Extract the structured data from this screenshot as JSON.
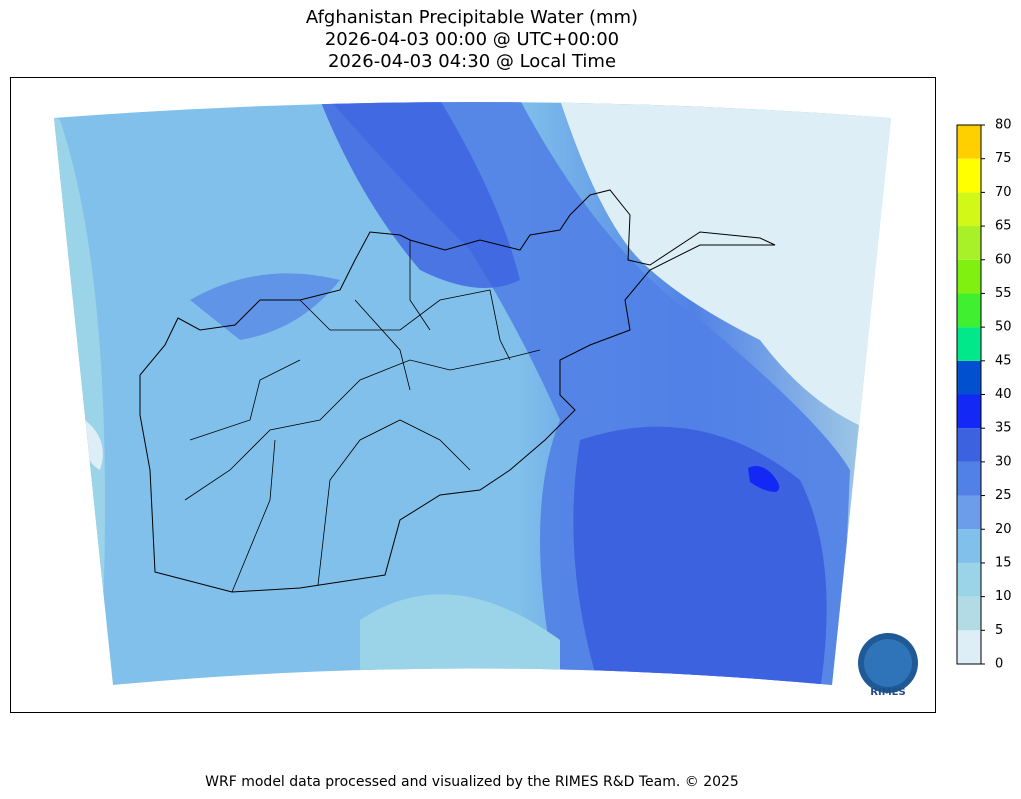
{
  "title": {
    "lines": [
      "Afghanistan Precipitable Water (mm)",
      "2026-04-03 00:00 @ UTC+00:00",
      "2026-04-03 04:30 @ Local Time"
    ]
  },
  "colorbar": {
    "ticks": [
      0,
      5,
      10,
      15,
      20,
      25,
      30,
      35,
      40,
      45,
      50,
      55,
      60,
      65,
      70,
      75,
      80
    ],
    "colors": [
      "#ddeef6",
      "#b2dbe6",
      "#9bd3e8",
      "#80c0ea",
      "#6b9deb",
      "#5181e6",
      "#3c62e0",
      "#1428f5",
      "#0050d0",
      "#00e88a",
      "#40f030",
      "#7ff010",
      "#a8f028",
      "#d2f818",
      "#ffff00",
      "#ffd000"
    ]
  },
  "logo": {
    "label": "RIMES"
  },
  "footer": "WRF model data processed and visualized by the RIMES R&D Team. © 2025"
}
